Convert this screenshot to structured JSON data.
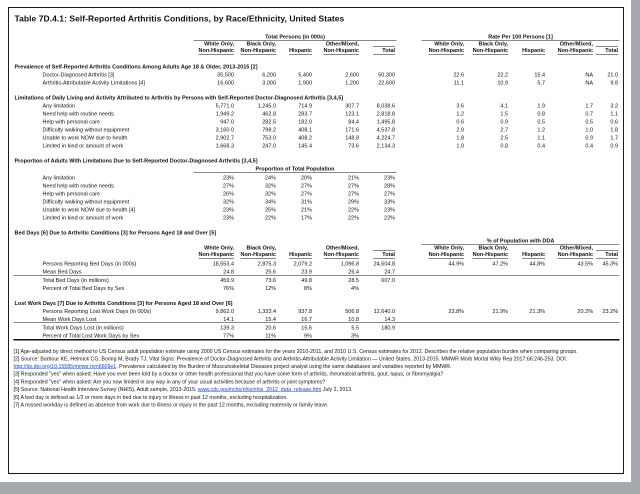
{
  "title": "Table 7D.4.1: Self-Reported Arthritis Conditions, by Race/Ethnicity, United States",
  "table": {
    "group_headers": {
      "left": "Total Persons (in 000s)",
      "right": "Rate Per 100 Persons [1]",
      "dda": "% of Population with DDA",
      "proportion_sub": "Proportion of Total Population"
    },
    "race_columns": [
      {
        "line1": "White Only,",
        "line2": "Non-Hispanic"
      },
      {
        "line1": "Black Only,",
        "line2": "Non-Hispanic"
      },
      {
        "line1": "Hispanic",
        "line2": ""
      },
      {
        "line1": "Other/Mixed,",
        "line2": "Non-Hispanic"
      },
      {
        "line1": "Total",
        "line2": ""
      }
    ],
    "sections": [
      {
        "id": "prevalence",
        "title": "Prevalence of Self-Reported Arthritis Conditions Among Adults Age 18 & Older, 2013-2015 [2]",
        "rows": [
          {
            "label": "Doctor-Diagnosed Arthritis [3]",
            "left": [
              "35,500",
              "6,200",
              "5,400",
              "2,600",
              "50,300"
            ],
            "right": [
              "22.6",
              "22.2",
              "15.4",
              "NA",
              "21.0"
            ]
          },
          {
            "label": "Arthritis-Attributable Activity Limitations [4]",
            "left": [
              "16,600",
              "3,000",
              "1,900",
              "1,200",
              "22,600"
            ],
            "right": [
              "11.1",
              "10.9",
              "5.7",
              "NA",
              "9.8"
            ]
          }
        ]
      },
      {
        "id": "limitations",
        "title": "Limitations of Daily Living and Activity Attributed to Arthritis by Persons with Self-Reported Doctor-Diagnosed Arthritis [3,4,5]",
        "rows": [
          {
            "label": "Any limitation",
            "left": [
              "5,771.0",
              "1,245.0",
              "714.9",
              "307.7",
              "8,038.6"
            ],
            "right": [
              "3.6",
              "4.1",
              "1.9",
              "1.7",
              "3.2"
            ]
          },
          {
            "label": "Need help with routine needs",
            "left": [
              "1,949.2",
              "462.8",
              "283.7",
              "123.1",
              "2,818.8"
            ],
            "right": [
              "1.2",
              "1.5",
              "0.8",
              "0.7",
              "1.1"
            ]
          },
          {
            "label": "Help with personal care",
            "left": [
              "947.0",
              "282.5",
              "182.0",
              "84.4",
              "1,495.8"
            ],
            "right": [
              "0.6",
              "0.9",
              "0.5",
              "0.5",
              "0.6"
            ]
          },
          {
            "label": "Difficulty walking without equipment",
            "left": [
              "3,160.0",
              "798.2",
              "408.1",
              "171.6",
              "4,537.8"
            ],
            "right": [
              "2.0",
              "2.7",
              "1.2",
              "1.0",
              "1.8"
            ]
          },
          {
            "label": "Unable to work NOW due to health",
            "left": [
              "2,902.7",
              "753.0",
              "408.2",
              "148.8",
              "4,224.7"
            ],
            "right": [
              "1.8",
              "2.5",
              "1.1",
              "0.9",
              "1.7"
            ]
          },
          {
            "label": "Limited in kind or amount of work",
            "left": [
              "1,668.3",
              "247.0",
              "145.4",
              "73.6",
              "2,134.3"
            ],
            "right": [
              "1.0",
              "0.8",
              "0.4",
              "0.4",
              "0.9"
            ]
          }
        ]
      },
      {
        "id": "proportions",
        "title": "Proportion of Adults With Limitations Due to Self-Reported Doctor-Diagnosed Arthritis [3,4,5]",
        "rows": [
          {
            "label": "Any limitation",
            "left": [
              "23%",
              "24%",
              "20%",
              "21%",
              "23%"
            ]
          },
          {
            "label": "Need help with routine needs",
            "left": [
              "27%",
              "32%",
              "27%",
              "27%",
              "28%"
            ]
          },
          {
            "label": "Help with personal care",
            "left": [
              "26%",
              "32%",
              "27%",
              "27%",
              "27%"
            ]
          },
          {
            "label": "Difficulty walking without equipment",
            "left": [
              "32%",
              "34%",
              "31%",
              "29%",
              "33%"
            ]
          },
          {
            "label": "Unable to work NOW due to health [4]",
            "left": [
              "23%",
              "25%",
              "21%",
              "22%",
              "23%"
            ]
          },
          {
            "label": "Limited in kind or amount of work",
            "left": [
              "23%",
              "22%",
              "17%",
              "22%",
              "22%"
            ]
          }
        ]
      },
      {
        "id": "bed_days",
        "title": "Bed Days [6] Due to Arthritic Conditions [3] for Persons Aged 18 and Over [5]",
        "rows": [
          {
            "label": "Persons Reporting Bed Days (in 000s)",
            "left": [
              "18,553.4",
              "2,875.3",
              "2,079.2",
              "1,096.8",
              "24,604.8"
            ],
            "right": [
              "44.9%",
              "47.2%",
              "44.8%",
              "43.5%",
              "45.3%"
            ]
          },
          {
            "label": "Mean Bed Days",
            "left": [
              "24.8",
              "25.6",
              "23.9",
              "26.4",
              "24.7"
            ]
          },
          {
            "label": "Total Bed Days (in millions)",
            "left": [
              "459.9",
              "73.6",
              "49.8",
              "28.5",
              "607.0"
            ]
          },
          {
            "label": "Percent of Total Bed Days by Sex",
            "left": [
              "76%",
              "12%",
              "8%",
              "4%",
              ""
            ]
          }
        ]
      },
      {
        "id": "lost_work",
        "title": "Lost Work Days [7] Due to Arthritis Conditions [3] for Persons Aged 18 and Over [6]",
        "rows": [
          {
            "label": "Persons Reporting Lost Work Days (in 000s)",
            "left": [
              "9,862.0",
              "1,333.4",
              "937.8",
              "506.8",
              "12,640.0"
            ],
            "right": [
              "23.8%",
              "21.9%",
              "21.3%",
              "20.2%",
              "23.2%"
            ]
          },
          {
            "label": "Mean Work Days Lost",
            "left": [
              "14.1",
              "15.4",
              "16.7",
              "10.8",
              "14.3"
            ]
          },
          {
            "label": "Total Work Days Lost (in millions)",
            "left": [
              "139.3",
              "20.6",
              "15.6",
              "5.5",
              "180.9"
            ]
          },
          {
            "label": "Percent of Total Lost Work Days by Sex",
            "left": [
              "77%",
              "11%",
              "9%",
              "3%",
              ""
            ]
          }
        ]
      }
    ]
  },
  "footnotes": [
    {
      "text": "[1] Age-adjusted by direct method to US Census adult population estimate using 2000 US Census estimates for the years 2010-2011, and 2010 U.S. Census estimates for 2012. Describes the relative population burden when comparing groups."
    },
    {
      "pre": "[2] Source: Barbour KE, Helmick CG, Boring M, Brady TJ. Vital Signs: Prevalence of Doctor-Diagnosed Arthritis and Arthritis-Attributable Activity Limitation — United States, 2013-2015. MMWR Morb Mortal Wkly Rep 2017;66:246-253. DOI: ",
      "link": "http://dx.doi.org/10.15585/mmwr.mm6609e1",
      "post": ". Prevalence calculated by the Burden of Musculoskeletal Diseases project analyst using the same databases and variables reported by MMWR."
    },
    {
      "text": "[3] Responded \"yes\" when asked: Have you ever been told by a doctor or other health professional that you have some form of arthritis, rheumatoid arthritis, gout, lupus, or fibromyalgia?"
    },
    {
      "text": "[4] Responded \"yes\" when asked: Are you now limited in any way in any of your usual activities because of arthritis or joint symptoms?"
    },
    {
      "pre": "[5] Source: National Health Interview Survey (NHIS), Adult sample, 2013-2015. ",
      "link": "www.cdc.gov/nchs/nhis/nhis_2012_data_release.htm",
      "post": " July 2, 2013."
    },
    {
      "text": "[6] A bed day is defined as 1/2 or more days in bed due to injury or illness in past 12 months, excluding hospitalization."
    },
    {
      "text": "[7] A missed workday is defined as absence from work due to illness or injury in the past 12 months, excluding maternity or family leave."
    }
  ]
}
